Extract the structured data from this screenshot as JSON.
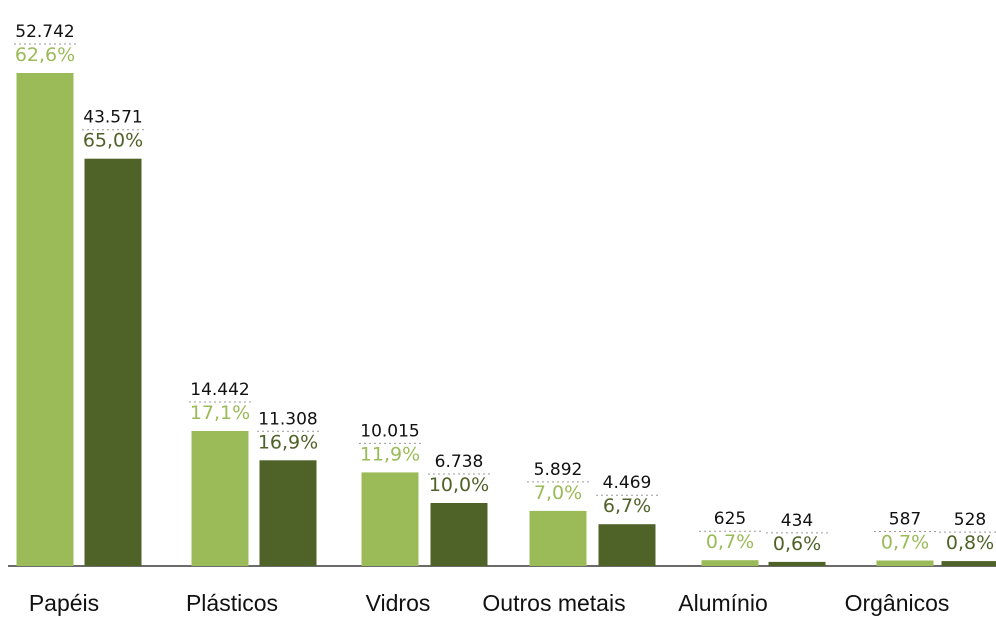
{
  "chart_data": {
    "type": "bar",
    "categories": [
      "Papéis",
      "Plásticos",
      "Vidros",
      "Outros metais",
      "Alumínio",
      "Orgânicos"
    ],
    "series": [
      {
        "values": [
          52742,
          14442,
          10015,
          5892,
          625,
          587
        ],
        "value_labels": [
          "52.742",
          "14.442",
          "10.015",
          "5.892",
          "625",
          "587"
        ],
        "pct_labels": [
          "62,6%",
          "17,1%",
          "11,9%",
          "7,0%",
          "0,7%",
          "0,7%"
        ]
      },
      {
        "values": [
          43571,
          11308,
          6738,
          4469,
          434,
          528
        ],
        "value_labels": [
          "43.571",
          "11.308",
          "6.738",
          "4.469",
          "434",
          "528"
        ],
        "pct_labels": [
          "65,0%",
          "16,9%",
          "10,0%",
          "6,7%",
          "0,6%",
          "0,8%"
        ]
      }
    ],
    "ylim": [
      0,
      55000
    ],
    "grid": false,
    "legend": "none"
  },
  "colors": {
    "series_1": "#9bbb59",
    "series_2": "#4f6228",
    "axis": "#3a3a3a"
  }
}
